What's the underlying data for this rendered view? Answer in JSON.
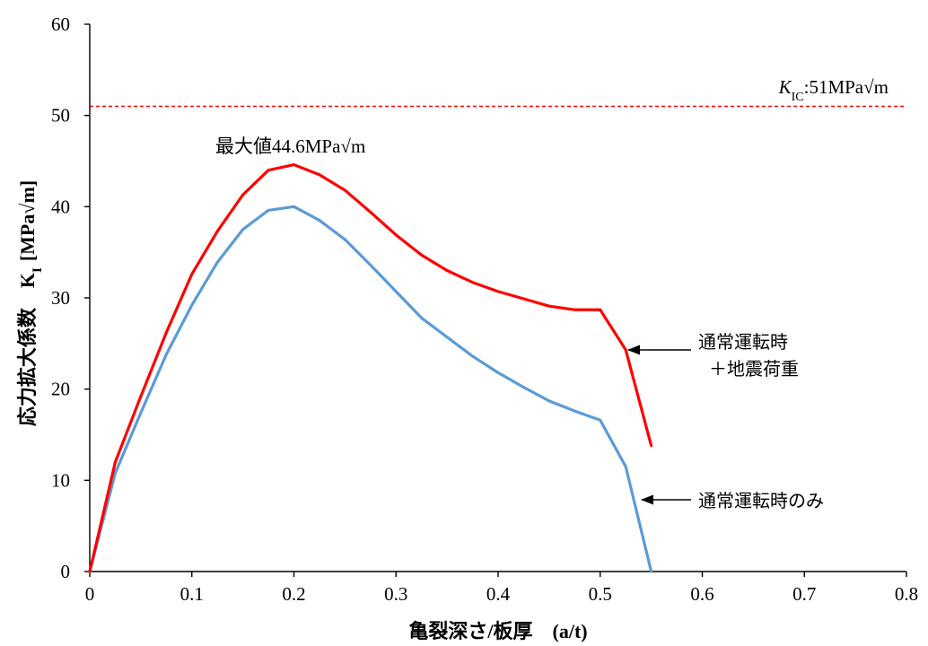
{
  "chart_data": {
    "type": "line",
    "xlabel": "亀裂深さ/板厚　(a/t)",
    "ylabel": {
      "main": "応力拡大係数　K",
      "sub": "I",
      "unit": "[MPa√m]"
    },
    "xlim": [
      0,
      0.8
    ],
    "ylim": [
      0,
      60
    ],
    "xticks": [
      0,
      0.1,
      0.2,
      0.3,
      0.4,
      0.5,
      0.6,
      0.7,
      0.8
    ],
    "xtick_labels": [
      "0",
      "0.1",
      "0.2",
      "0.3",
      "0.4",
      "0.5",
      "0.6",
      "0.7",
      "0.8"
    ],
    "yticks": [
      0,
      10,
      20,
      30,
      40,
      50,
      60
    ],
    "ytick_labels": [
      "0",
      "10",
      "20",
      "30",
      "40",
      "50",
      "60"
    ],
    "grid": false,
    "legend": "none",
    "series": [
      {
        "name_lines": [
          "通常運転時",
          "＋地震荷重"
        ],
        "color": "#ff0000",
        "x": [
          0,
          0.025,
          0.05,
          0.075,
          0.1,
          0.125,
          0.15,
          0.175,
          0.2,
          0.225,
          0.25,
          0.275,
          0.3,
          0.325,
          0.35,
          0.375,
          0.4,
          0.425,
          0.45,
          0.475,
          0.5,
          0.525,
          0.55
        ],
        "y": [
          0,
          12.0,
          19.2,
          26.2,
          32.6,
          37.3,
          41.3,
          44.0,
          44.6,
          43.5,
          41.8,
          39.4,
          36.9,
          34.7,
          33.0,
          31.7,
          30.7,
          29.9,
          29.1,
          28.7,
          28.7,
          24.3,
          13.8
        ]
      },
      {
        "name_lines": [
          "通常運転時のみ"
        ],
        "color": "#5b9bd5",
        "x": [
          0,
          0.025,
          0.05,
          0.075,
          0.1,
          0.125,
          0.15,
          0.175,
          0.2,
          0.225,
          0.25,
          0.275,
          0.3,
          0.325,
          0.35,
          0.375,
          0.4,
          0.425,
          0.45,
          0.475,
          0.5,
          0.525,
          0.55
        ],
        "y": [
          0,
          10.8,
          17.4,
          23.8,
          29.2,
          33.9,
          37.5,
          39.6,
          40.0,
          38.5,
          36.4,
          33.6,
          30.7,
          27.8,
          25.7,
          23.6,
          21.8,
          20.2,
          18.7,
          17.6,
          16.6,
          11.5,
          0
        ]
      }
    ],
    "reference_lines": [
      {
        "axis": "y",
        "value": 51,
        "color": "#ff0000",
        "style": "dashed",
        "label": {
          "k": "K",
          "sub": "IC",
          "rest": ":51MPa√m"
        }
      }
    ],
    "annotations": [
      {
        "text": "最大値44.6MPa√m"
      }
    ]
  }
}
